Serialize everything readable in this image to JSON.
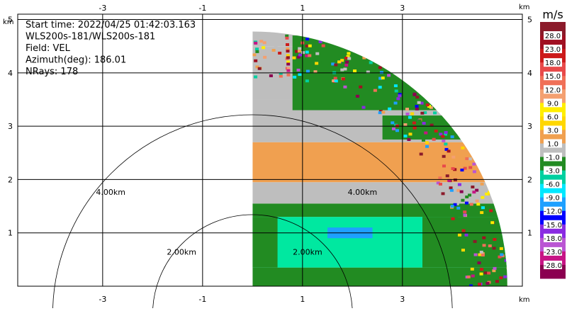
{
  "chart_data": {
    "type": "heatmap",
    "field": "VEL",
    "info_lines": [
      "Start time: 2022/04/25 01:42:03.163",
      "WLS200s-181/WLS200s-181",
      "Field: VEL",
      "Azimuth(deg): 186.01",
      "NRays: 178"
    ],
    "x_unit": "km",
    "y_unit": "km",
    "xlim": [
      -4.7,
      5.4
    ],
    "ylim": [
      0,
      5.1
    ],
    "x_ticks": [
      -3,
      -1,
      1,
      3
    ],
    "y_ticks": [
      1,
      2,
      3,
      4,
      5
    ],
    "grid": true,
    "range_rings": [
      {
        "radius_km": 4,
        "label": "4.00km"
      },
      {
        "radius_km": 2,
        "label": "2.00km"
      }
    ],
    "sector": {
      "x_min_km": 0,
      "max_range_km": 5.1
    },
    "colorbar": {
      "unit": "m/s",
      "labels": [
        "28.0",
        "23.0",
        "18.0",
        "15.0",
        "12.0",
        "9.0",
        "6.0",
        "3.0",
        "1.0",
        "-1.0",
        "-3.0",
        "-6.0",
        "-9.0",
        "-12.0",
        "-15.0",
        "-18.0",
        "-23.0",
        "-28.0"
      ],
      "colors": [
        "#8b1a2a",
        "#a01022",
        "#cc1a1a",
        "#e84a4a",
        "#f07058",
        "#f4a070",
        "#ffee00",
        "#ffd700",
        "#f0a050",
        "#bebebe",
        "#228b22",
        "#00d0a0",
        "#00e8ff",
        "#1ea0ff",
        "#0000ff",
        "#8a2be2",
        "#ba55d3",
        "#c71585",
        "#8b0050"
      ]
    },
    "bands": [
      {
        "y_from": 0.0,
        "y_to": 0.35,
        "color": "#228b22"
      },
      {
        "y_from": 0.35,
        "y_to": 1.3,
        "color": "#00e8a0"
      },
      {
        "y_from": 1.3,
        "y_to": 1.55,
        "color": "#228b22"
      },
      {
        "y_from": 1.55,
        "y_to": 1.95,
        "color": "#bebebe"
      },
      {
        "y_from": 1.95,
        "y_to": 2.7,
        "color": "#f0a050"
      },
      {
        "y_from": 2.7,
        "y_to": 3.5,
        "color": "#bebebe"
      },
      {
        "y_from": 3.5,
        "y_to": 4.5,
        "color": "#bebebe"
      },
      {
        "y_from": 4.5,
        "y_to": 5.1,
        "color": "#bebebe"
      }
    ],
    "patches": [
      {
        "x0": 0.8,
        "x1": 5.2,
        "y0": 3.3,
        "y1": 4.7,
        "color": "#228b22"
      },
      {
        "x0": 2.6,
        "x1": 5.2,
        "y0": 2.75,
        "y1": 3.2,
        "color": "#228b22"
      },
      {
        "x0": 0.0,
        "x1": 0.5,
        "y0": 0.35,
        "y1": 1.3,
        "color": "#228b22"
      },
      {
        "x0": 3.4,
        "x1": 5.2,
        "y0": 0.35,
        "y1": 1.3,
        "color": "#228b22"
      },
      {
        "x0": 1.5,
        "x1": 2.4,
        "y0": 0.9,
        "y1": 1.1,
        "color": "#1ea0ff"
      }
    ]
  }
}
